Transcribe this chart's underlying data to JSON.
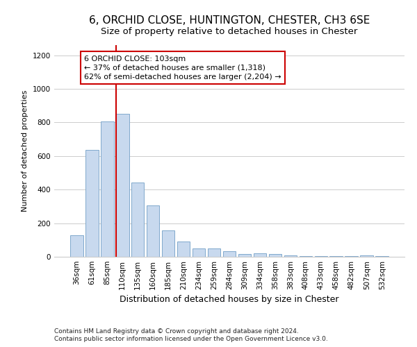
{
  "title1": "6, ORCHID CLOSE, HUNTINGTON, CHESTER, CH3 6SE",
  "title2": "Size of property relative to detached houses in Chester",
  "xlabel": "Distribution of detached houses by size in Chester",
  "ylabel": "Number of detached properties",
  "categories": [
    "36sqm",
    "61sqm",
    "85sqm",
    "110sqm",
    "135sqm",
    "160sqm",
    "185sqm",
    "210sqm",
    "234sqm",
    "259sqm",
    "284sqm",
    "309sqm",
    "334sqm",
    "358sqm",
    "383sqm",
    "408sqm",
    "433sqm",
    "458sqm",
    "482sqm",
    "507sqm",
    "532sqm"
  ],
  "values": [
    130,
    635,
    805,
    850,
    440,
    305,
    155,
    90,
    50,
    50,
    35,
    15,
    20,
    15,
    10,
    5,
    5,
    5,
    5,
    10,
    5
  ],
  "bar_color": "#c8d9ee",
  "bar_edge_color": "#7fa8cc",
  "vline_index": 3,
  "vline_color": "#cc0000",
  "ylim": [
    0,
    1260
  ],
  "yticks": [
    0,
    200,
    400,
    600,
    800,
    1000,
    1200
  ],
  "annotation_line1": "6 ORCHID CLOSE: 103sqm",
  "annotation_line2": "← 37% of detached houses are smaller (1,318)",
  "annotation_line3": "62% of semi-detached houses are larger (2,204) →",
  "annotation_box_color": "#cc0000",
  "footer1": "Contains HM Land Registry data © Crown copyright and database right 2024.",
  "footer2": "Contains public sector information licensed under the Open Government Licence v3.0.",
  "background_color": "#ffffff",
  "grid_color": "#cccccc",
  "title1_fontsize": 11,
  "title2_fontsize": 9.5,
  "ylabel_fontsize": 8,
  "xlabel_fontsize": 9,
  "tick_fontsize": 7.5,
  "annotation_fontsize": 8,
  "footer_fontsize": 6.5
}
